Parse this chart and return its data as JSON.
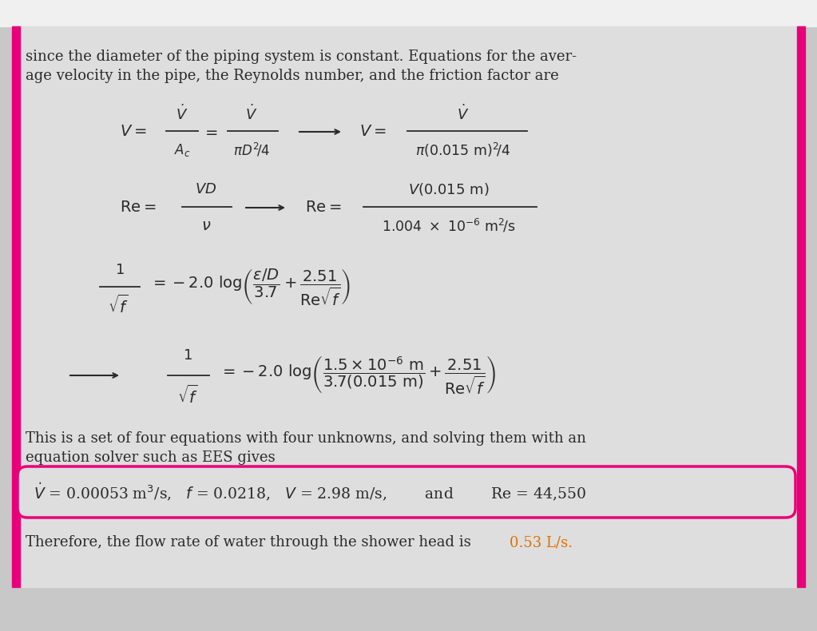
{
  "outer_bg": "#c8c8c8",
  "inner_bg": "#dedede",
  "text_color": "#2a2a2a",
  "highlight_color": "#e8007a",
  "orange_color": "#e07000",
  "left_bar_color": "#e8007a",
  "right_bar_color": "#e8007a",
  "figsize": [
    10.23,
    7.9
  ],
  "dpi": 100,
  "header_line1": "since the diameter of the piping system is constant. Equations for the aver-",
  "header_line2": "age velocity in the pipe, the Reynolds number, and the friction factor are",
  "conclusion_line1": "This is a set of four equations with four unknowns, and solving them with an",
  "conclusion_line2": "equation solver such as EES gives",
  "footer_text_1": "Therefore, the flow rate of water through the shower head is ",
  "footer_highlight": "0.53 L/s.",
  "font_size_body": 13.0,
  "font_size_eq": 13.5
}
